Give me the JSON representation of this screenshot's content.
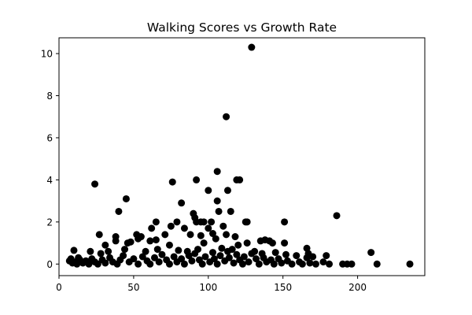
{
  "chart_data": {
    "type": "scatter",
    "title": "Walking Scores vs Growth Rate",
    "xlabel": "",
    "ylabel": "",
    "xlim": [
      0,
      245
    ],
    "ylim": [
      -0.55,
      10.75
    ],
    "xticks": [
      0,
      50,
      100,
      150,
      200
    ],
    "xtick_labels": [
      "0",
      "50",
      "100",
      "150",
      "200"
    ],
    "yticks": [
      0,
      2,
      4,
      6,
      8,
      10
    ],
    "ytick_labels": [
      "0",
      "2",
      "4",
      "6",
      "8",
      "10"
    ],
    "grid": false,
    "marker_color": "#000000",
    "points": [
      [
        129,
        10.3
      ],
      [
        112,
        7.0
      ],
      [
        106,
        4.4
      ],
      [
        92,
        4.0
      ],
      [
        121,
        4.0
      ],
      [
        119,
        4.0
      ],
      [
        24,
        3.8
      ],
      [
        76,
        3.9
      ],
      [
        113,
        3.5
      ],
      [
        100,
        3.5
      ],
      [
        45,
        3.1
      ],
      [
        106,
        3.0
      ],
      [
        82,
        2.9
      ],
      [
        40,
        2.5
      ],
      [
        107,
        2.5
      ],
      [
        115,
        2.5
      ],
      [
        90,
        2.4
      ],
      [
        186,
        2.3
      ],
      [
        91,
        2.2
      ],
      [
        65,
        2.0
      ],
      [
        95,
        2.0
      ],
      [
        97,
        2.0
      ],
      [
        102,
        2.0
      ],
      [
        125,
        2.0
      ],
      [
        126,
        2.0
      ],
      [
        79,
        2.0
      ],
      [
        151,
        2.0
      ],
      [
        92,
        2.0
      ],
      [
        110,
        1.8
      ],
      [
        75,
        1.8
      ],
      [
        62,
        1.7
      ],
      [
        100,
        1.7
      ],
      [
        84,
        1.7
      ],
      [
        27,
        1.4
      ],
      [
        52,
        1.4
      ],
      [
        88,
        1.4
      ],
      [
        95,
        1.35
      ],
      [
        55,
        1.3
      ],
      [
        71,
        1.4
      ],
      [
        103,
        1.45
      ],
      [
        112,
        1.4
      ],
      [
        118,
        1.3
      ],
      [
        138,
        1.15
      ],
      [
        135,
        1.1
      ],
      [
        141,
        1.1
      ],
      [
        143,
        1.0
      ],
      [
        151,
        1.0
      ],
      [
        61,
        1.1
      ],
      [
        65,
        1.15
      ],
      [
        46,
        1.0
      ],
      [
        48,
        1.05
      ],
      [
        38,
        1.3
      ],
      [
        38,
        1.1
      ],
      [
        53,
        1.2
      ],
      [
        105,
        1.2
      ],
      [
        97,
        1.0
      ],
      [
        126,
        1.0
      ],
      [
        31,
        0.9
      ],
      [
        74,
        0.9
      ],
      [
        120,
        0.9
      ],
      [
        166,
        0.75
      ],
      [
        167,
        0.5
      ],
      [
        179,
        0.4
      ],
      [
        209,
        0.55
      ],
      [
        10,
        0.65
      ],
      [
        13,
        0.3
      ],
      [
        21,
        0.6
      ],
      [
        28,
        0.5
      ],
      [
        33,
        0.6
      ],
      [
        44,
        0.7
      ],
      [
        58,
        0.6
      ],
      [
        66,
        0.7
      ],
      [
        80,
        0.65
      ],
      [
        86,
        0.6
      ],
      [
        93,
        0.7
      ],
      [
        109,
        0.75
      ],
      [
        116,
        0.7
      ],
      [
        131,
        0.6
      ],
      [
        136,
        0.5
      ],
      [
        145,
        0.55
      ],
      [
        152,
        0.45
      ],
      [
        159,
        0.4
      ],
      [
        166,
        0.3
      ],
      [
        170,
        0.35
      ],
      [
        7,
        0.15
      ],
      [
        8,
        0.25
      ],
      [
        9,
        0.05
      ],
      [
        11,
        0.1
      ],
      [
        12,
        0.0
      ],
      [
        14,
        0.2
      ],
      [
        16,
        0.05
      ],
      [
        18,
        0.15
      ],
      [
        20,
        0.0
      ],
      [
        22,
        0.25
      ],
      [
        24,
        0.1
      ],
      [
        26,
        0.0
      ],
      [
        29,
        0.2
      ],
      [
        31,
        0.05
      ],
      [
        34,
        0.3
      ],
      [
        36,
        0.1
      ],
      [
        39,
        0.0
      ],
      [
        41,
        0.2
      ],
      [
        43,
        0.4
      ],
      [
        47,
        0.1
      ],
      [
        50,
        0.25
      ],
      [
        53,
        0.0
      ],
      [
        56,
        0.35
      ],
      [
        59,
        0.15
      ],
      [
        61,
        0.0
      ],
      [
        64,
        0.3
      ],
      [
        67,
        0.1
      ],
      [
        69,
        0.45
      ],
      [
        72,
        0.2
      ],
      [
        74,
        0.0
      ],
      [
        77,
        0.35
      ],
      [
        79,
        0.1
      ],
      [
        82,
        0.25
      ],
      [
        84,
        0.0
      ],
      [
        87,
        0.4
      ],
      [
        89,
        0.15
      ],
      [
        91,
        0.5
      ],
      [
        94,
        0.2
      ],
      [
        96,
        0.0
      ],
      [
        98,
        0.35
      ],
      [
        101,
        0.1
      ],
      [
        103,
        0.55
      ],
      [
        104,
        0.25
      ],
      [
        106,
        0.0
      ],
      [
        108,
        0.4
      ],
      [
        111,
        0.15
      ],
      [
        113,
        0.6
      ],
      [
        114,
        0.3
      ],
      [
        117,
        0.05
      ],
      [
        119,
        0.45
      ],
      [
        121,
        0.2
      ],
      [
        123,
        0.0
      ],
      [
        124,
        0.35
      ],
      [
        127,
        0.1
      ],
      [
        129,
        0.5
      ],
      [
        132,
        0.25
      ],
      [
        134,
        0.0
      ],
      [
        137,
        0.3
      ],
      [
        139,
        0.1
      ],
      [
        142,
        0.2
      ],
      [
        144,
        0.0
      ],
      [
        147,
        0.25
      ],
      [
        149,
        0.05
      ],
      [
        153,
        0.15
      ],
      [
        156,
        0.0
      ],
      [
        161,
        0.1
      ],
      [
        163,
        0.0
      ],
      [
        168,
        0.05
      ],
      [
        172,
        0.0
      ],
      [
        177,
        0.1
      ],
      [
        181,
        0.0
      ],
      [
        190,
        0.0
      ],
      [
        193,
        0.0
      ],
      [
        196,
        0.0
      ],
      [
        213,
        0.0
      ],
      [
        235,
        0.0
      ]
    ]
  }
}
